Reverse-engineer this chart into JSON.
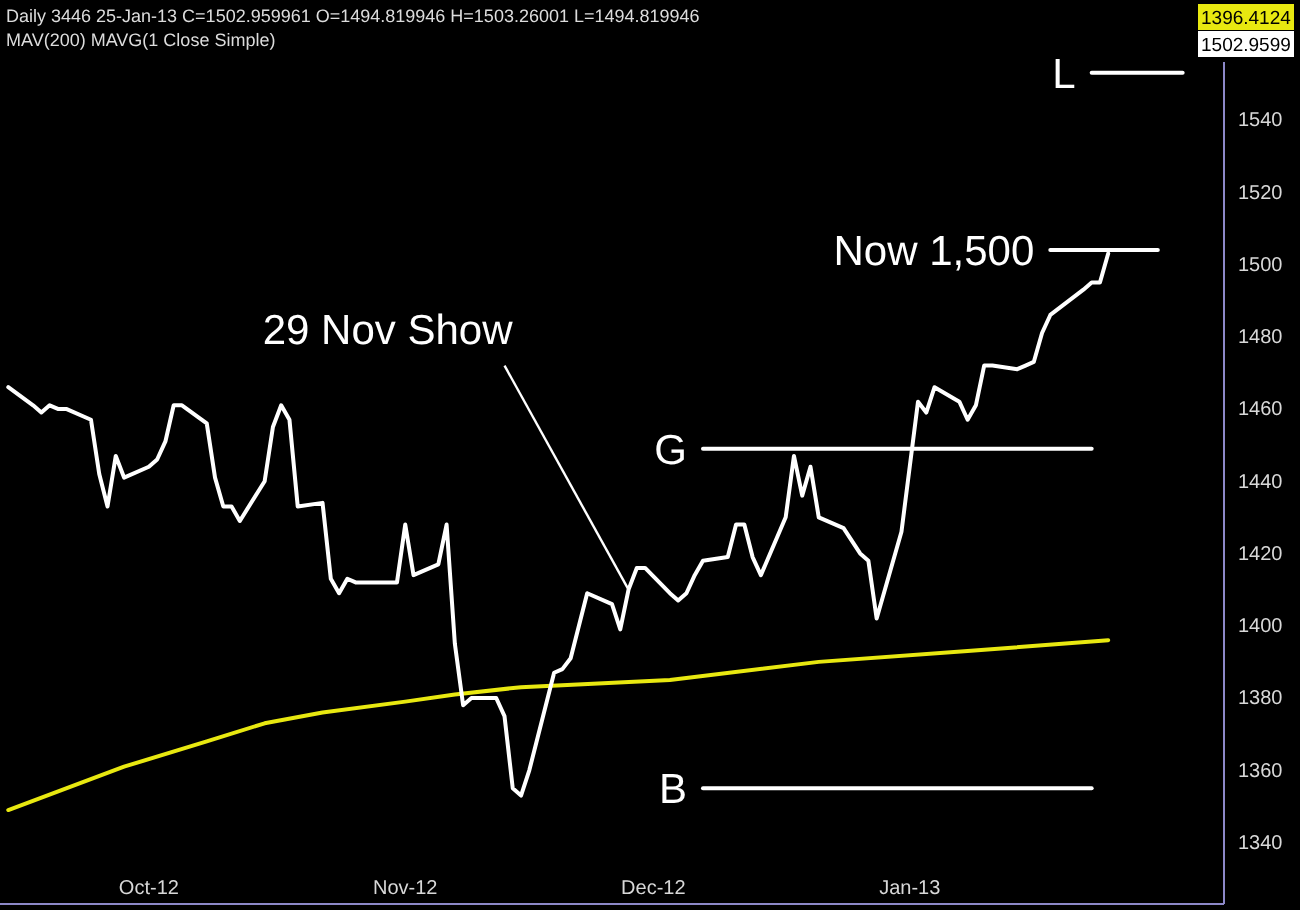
{
  "chart_data": {
    "type": "line",
    "title": "Daily 3446 25-Jan-13 C=1502.959961 O=1494.819946 H=1503.26001 L=1494.819946",
    "subtitle": "MAV(200) MAVG(1 Close Simple)",
    "xlim": [
      "2012-09-13",
      "2013-02-08"
    ],
    "xticks": [
      {
        "value": "2012-10-01",
        "label": "Oct-12"
      },
      {
        "value": "2012-11-01",
        "label": "Nov-12"
      },
      {
        "value": "2012-12-01",
        "label": "Dec-12"
      },
      {
        "value": "2013-01-01",
        "label": "Jan-13"
      }
    ],
    "ylim": [
      1323,
      1556
    ],
    "yticks": [
      1340,
      1360,
      1380,
      1400,
      1420,
      1440,
      1460,
      1480,
      1500,
      1520,
      1540
    ],
    "series": [
      {
        "color": "#e8e810",
        "x": [
          "2012-09-14",
          "2012-09-21",
          "2012-09-28",
          "2012-10-08",
          "2012-10-15",
          "2012-10-22",
          "2012-11-01",
          "2012-11-07",
          "2012-11-15",
          "2012-12-03",
          "2012-12-21",
          "2013-01-08",
          "2013-01-25"
        ],
        "values": [
          1349,
          1355,
          1361,
          1368,
          1373,
          1376,
          1379,
          1381,
          1383,
          1385,
          1390,
          1393,
          1396
        ]
      },
      {
        "color": "#ffffff",
        "x": [
          "2012-09-14",
          "2012-09-17",
          "2012-09-18",
          "2012-09-19",
          "2012-09-20",
          "2012-09-21",
          "2012-09-24",
          "2012-09-25",
          "2012-09-26",
          "2012-09-27",
          "2012-09-28",
          "2012-10-01",
          "2012-10-02",
          "2012-10-03",
          "2012-10-04",
          "2012-10-05",
          "2012-10-08",
          "2012-10-09",
          "2012-10-10",
          "2012-10-11",
          "2012-10-12",
          "2012-10-15",
          "2012-10-16",
          "2012-10-17",
          "2012-10-18",
          "2012-10-19",
          "2012-10-22",
          "2012-10-23",
          "2012-10-24",
          "2012-10-25",
          "2012-10-26",
          "2012-10-31",
          "2012-11-01",
          "2012-11-02",
          "2012-11-05",
          "2012-11-06",
          "2012-11-07",
          "2012-11-08",
          "2012-11-09",
          "2012-11-12",
          "2012-11-13",
          "2012-11-14",
          "2012-11-15",
          "2012-11-16",
          "2012-11-19",
          "2012-11-20",
          "2012-11-21",
          "2012-11-23",
          "2012-11-26",
          "2012-11-27",
          "2012-11-28",
          "2012-11-29",
          "2012-11-30",
          "2012-12-03",
          "2012-12-04",
          "2012-12-05",
          "2012-12-06",
          "2012-12-07",
          "2012-12-10",
          "2012-12-11",
          "2012-12-12",
          "2012-12-13",
          "2012-12-14",
          "2012-12-17",
          "2012-12-18",
          "2012-12-19",
          "2012-12-20",
          "2012-12-21",
          "2012-12-24",
          "2012-12-26",
          "2012-12-27",
          "2012-12-28",
          "2012-12-31",
          "2013-01-02",
          "2013-01-03",
          "2013-01-04",
          "2013-01-07",
          "2013-01-08",
          "2013-01-09",
          "2013-01-10",
          "2013-01-11",
          "2013-01-14",
          "2013-01-15",
          "2013-01-16",
          "2013-01-17",
          "2013-01-18",
          "2013-01-22",
          "2013-01-23",
          "2013-01-24",
          "2013-01-25"
        ],
        "values": [
          1466,
          1461,
          1459,
          1461,
          1460,
          1460,
          1457,
          1442,
          1433,
          1447,
          1441,
          1444,
          1446,
          1451,
          1461,
          1461,
          1456,
          1441,
          1433,
          1433,
          1429,
          1440,
          1455,
          1461,
          1457,
          1433,
          1434,
          1413,
          1409,
          1413,
          1412,
          1412,
          1428,
          1414,
          1417,
          1428,
          1395,
          1378,
          1380,
          1380,
          1375,
          1355,
          1353,
          1360,
          1387,
          1388,
          1391,
          1409,
          1406,
          1399,
          1410,
          1416,
          1416,
          1409,
          1407,
          1409,
          1414,
          1418,
          1419,
          1428,
          1428,
          1419,
          1414,
          1430,
          1447,
          1436,
          1444,
          1430,
          1427,
          1420,
          1418,
          1402,
          1426,
          1462,
          1459,
          1466,
          1462,
          1457,
          1461,
          1472,
          1472,
          1471,
          1472,
          1473,
          1481,
          1486,
          1493,
          1495,
          1495,
          1503
        ]
      },
      {
        "color": "#ffffff",
        "x": [
          "2013-01-23",
          "2013-02-03"
        ],
        "values": [
          1553,
          1553
        ]
      },
      {
        "color": "#ffffff",
        "x": [
          "2013-01-18",
          "2013-01-31"
        ],
        "values": [
          1504,
          1504
        ]
      },
      {
        "color": "#ffffff",
        "x": [
          "2012-12-07",
          "2013-01-23"
        ],
        "values": [
          1449,
          1449
        ]
      },
      {
        "color": "#ffffff",
        "x": [
          "2012-12-07",
          "2013-01-23"
        ],
        "values": [
          1355,
          1355
        ]
      }
    ],
    "annotations": [
      "1396.4124",
      "1502.9599",
      {
        "text": "L",
        "x": "2013-01-23",
        "y": 1553
      },
      {
        "text": "Now 1,500",
        "x": "2013-01-18",
        "y": 1504
      },
      {
        "text": "G",
        "x": "2012-12-07",
        "y": 1449
      },
      {
        "text": "B",
        "x": "2012-12-07",
        "y": 1355
      },
      {
        "text": "29 Nov Show",
        "x": "2012-11-28",
        "y": 1410
      }
    ]
  }
}
